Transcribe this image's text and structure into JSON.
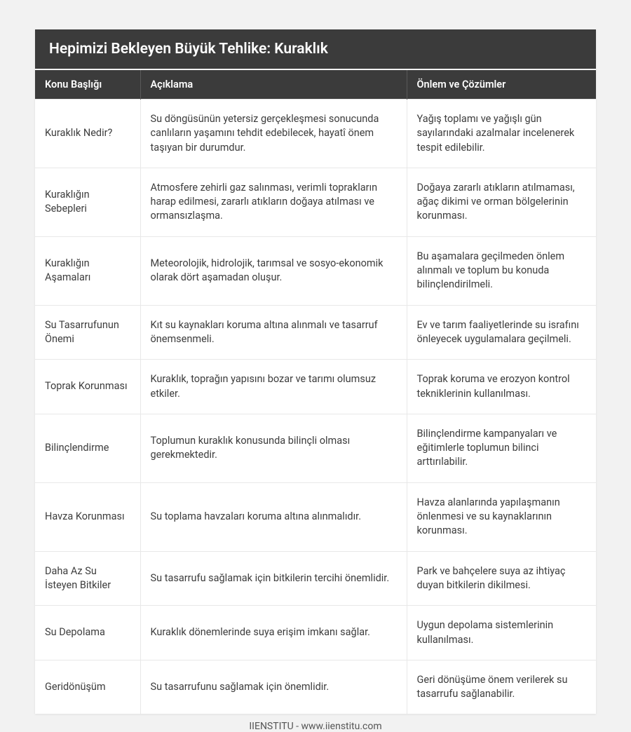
{
  "title": "Hepimizi Bekleyen Büyük Tehlike: Kuraklık",
  "columns": [
    "Konu Başlığı",
    "Açıklama",
    "Önlem ve Çözümler"
  ],
  "rows": [
    {
      "topic": "Kuraklık Nedir?",
      "desc": "Su döngüsünün yetersiz gerçekleşmesi sonucunda canlıların yaşamını tehdit edebilecek, hayatî önem taşıyan bir durumdur.",
      "solution": "Yağış toplamı ve yağışlı gün sayılarındaki azalmalar incelenerek tespit edilebilir."
    },
    {
      "topic": "Kuraklığın Sebepleri",
      "desc": "Atmosfere zehirli gaz salınması, verimli toprakların harap edilmesi, zararlı atıkların doğaya atılması ve ormansızlaşma.",
      "solution": "Doğaya zararlı atıkların atılmaması, ağaç dikimi ve orman bölgelerinin korunması."
    },
    {
      "topic": "Kuraklığın Aşamaları",
      "desc": "Meteorolojik, hidrolojik, tarımsal ve sosyo-ekonomik olarak dört aşamadan oluşur.",
      "solution": "Bu aşamalara geçilmeden önlem alınmalı ve toplum bu konuda bilinçlendirilmeli."
    },
    {
      "topic": "Su Tasarrufunun Önemi",
      "desc": "Kıt su kaynakları koruma altına alınmalı ve tasarruf önemsenmeli.",
      "solution": "Ev ve tarım faaliyetlerinde su israfını önleyecek uygulamalara geçilmeli."
    },
    {
      "topic": "Toprak Korunması",
      "desc": "Kuraklık, toprağın yapısını bozar ve tarımı olumsuz etkiler.",
      "solution": "Toprak koruma ve erozyon kontrol tekniklerinin kullanılması."
    },
    {
      "topic": "Bilinçlendirme",
      "desc": "Toplumun kuraklık konusunda bilinçli olması gerekmektedir.",
      "solution": "Bilinçlendirme kampanyaları ve eğitimlerle toplumun bilinci arttırılabilir."
    },
    {
      "topic": "Havza Korunması",
      "desc": "Su toplama havzaları koruma altına alınmalıdır.",
      "solution": "Havza alanlarında yapılaşmanın önlenmesi ve su kaynaklarının korunması."
    },
    {
      "topic": "Daha Az Su İsteyen Bitkiler",
      "desc": "Su tasarrufu sağlamak için bitkilerin tercihi önemlidir.",
      "solution": "Park ve bahçelere suya az ihtiyaç duyan bitkilerin dikilmesi."
    },
    {
      "topic": "Su Depolama",
      "desc": "Kuraklık dönemlerinde suya erişim imkanı sağlar.",
      "solution": "Uygun depolama sistemlerinin kullanılması."
    },
    {
      "topic": "Geridönüşüm",
      "desc": "Su tasarrufunu sağlamak için önemlidir.",
      "solution": "Geri dönüşüme önem verilerek su tasarrufu sağlanabilir."
    }
  ],
  "footer": "IIENSTITU - www.iienstitu.com",
  "colors": {
    "page_bg": "#f2f2f2",
    "card_bg": "#ffffff",
    "header_bg": "#3b3b3b",
    "header_text": "#ffffff",
    "border": "#e8e8e8",
    "text": "#3d3d3d"
  }
}
